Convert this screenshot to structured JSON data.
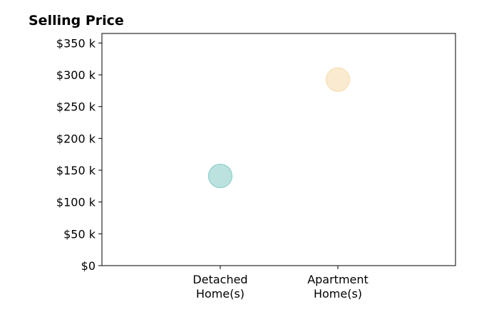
{
  "chart_data": {
    "type": "scatter",
    "title": "Selling Price",
    "categories": [
      "Detached\nHome(s)",
      "Apartment\nHome(s)"
    ],
    "values": [
      141000,
      292500
    ],
    "ylim": [
      0,
      365000
    ],
    "y_ticks": [
      {
        "value": 0,
        "label": "$0"
      },
      {
        "value": 50000,
        "label": "$50 k"
      },
      {
        "value": 100000,
        "label": "$100 k"
      },
      {
        "value": 150000,
        "label": "$150 k"
      },
      {
        "value": 200000,
        "label": "$200 k"
      },
      {
        "value": 250000,
        "label": "$250 k"
      },
      {
        "value": 300000,
        "label": "$300 k"
      },
      {
        "value": 350000,
        "label": "$350 k"
      }
    ],
    "colors": [
      "#8ecfc9",
      "#f6deb0"
    ],
    "grid": false,
    "xlabel": "",
    "ylabel": ""
  }
}
